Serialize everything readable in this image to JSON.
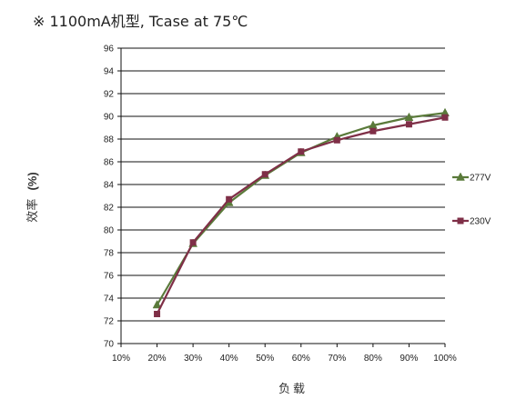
{
  "chart_data": {
    "type": "line",
    "title": "※ 1100mA机型, Tcase at 75℃",
    "xlabel": "负载",
    "ylabel_main": "效率",
    "ylabel_unit": "(%)",
    "categories": [
      "10%",
      "20%",
      "30%",
      "40%",
      "50%",
      "60%",
      "70%",
      "80%",
      "90%",
      "100%"
    ],
    "ylim": [
      70,
      96
    ],
    "yticks": [
      70,
      72,
      74,
      76,
      78,
      80,
      82,
      84,
      86,
      88,
      90,
      92,
      94,
      96
    ],
    "grid": "horizontal",
    "legend_position": "right",
    "series": [
      {
        "name": "277V",
        "color": "#5a7a3a",
        "marker": "triangle",
        "x": [
          "20%",
          "30%",
          "40%",
          "50%",
          "60%",
          "70%",
          "80%",
          "90%",
          "100%"
        ],
        "values": [
          73.4,
          78.8,
          82.4,
          84.8,
          86.8,
          88.2,
          89.2,
          89.9,
          90.3
        ]
      },
      {
        "name": "230V",
        "color": "#7f2f47",
        "marker": "square",
        "x": [
          "20%",
          "30%",
          "40%",
          "50%",
          "60%",
          "70%",
          "80%",
          "90%",
          "100%"
        ],
        "values": [
          72.6,
          78.9,
          82.7,
          84.9,
          86.9,
          87.9,
          88.7,
          89.3,
          89.9
        ]
      }
    ]
  }
}
